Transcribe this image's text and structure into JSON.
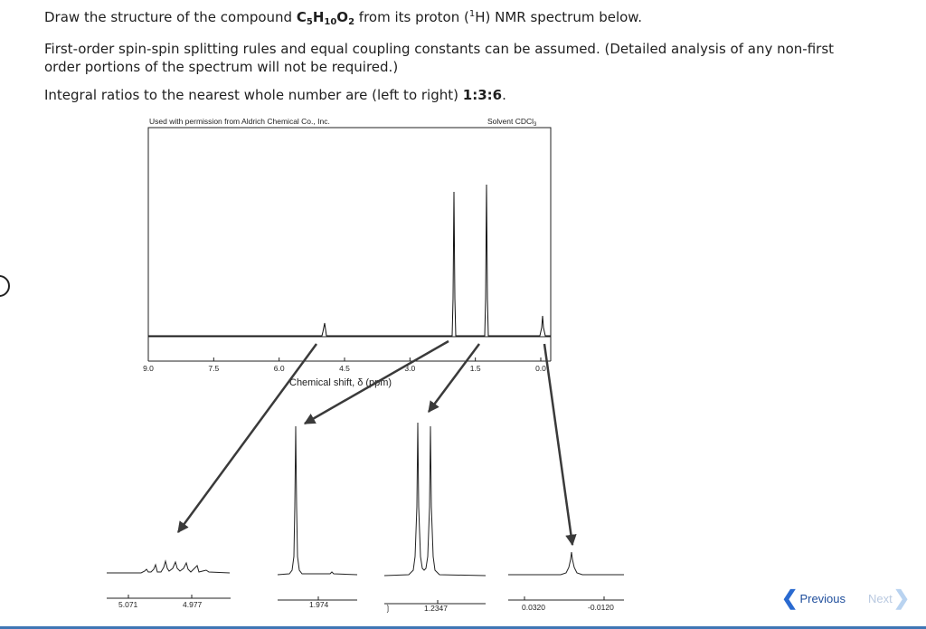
{
  "question": {
    "line1_prefix": "Draw the structure of the compound ",
    "formula": {
      "c": "C",
      "c_sub": "5",
      "h": "H",
      "h_sub": "10",
      "o": "O",
      "o_sub": "2"
    },
    "line1_mid": " from its proton (",
    "nucleus_sup": "1",
    "nucleus": "H",
    "line1_suffix": ") NMR spectrum below.",
    "line2": "First-order spin-spin splitting rules and equal coupling constants can be assumed. (Detailed analysis of any non-first",
    "line3": "order portions of the spectrum will not be required.)",
    "line4_prefix": "Integral ratios to the nearest whole number are (left to right) ",
    "ratio": "1:3:6",
    "line4_suffix": "."
  },
  "spectrum": {
    "credit": "Used with permission from Aldrich Chemical Co., Inc.",
    "solvent_prefix": "Solvent CDCl",
    "solvent_sub": "3",
    "x_ticks": [
      "9.0",
      "7.5",
      "6.0",
      "4.5",
      "3.0",
      "1.5",
      "0.0"
    ],
    "xlabel": "Chemical shift, δ (ppm)",
    "insets": [
      {
        "ticks": [
          "5.071",
          "4.977"
        ]
      },
      {
        "ticks": [
          "1.974"
        ]
      },
      {
        "ticks": [
          "1.2347"
        ]
      },
      {
        "ticks": [
          "0.0320",
          "-0.0120"
        ]
      }
    ]
  },
  "nav": {
    "previous": "Previous",
    "next": "Next"
  },
  "colors": {
    "link": "#1f4e9c",
    "link_disabled": "#b9c9e0",
    "bar": "#3f76b5"
  }
}
